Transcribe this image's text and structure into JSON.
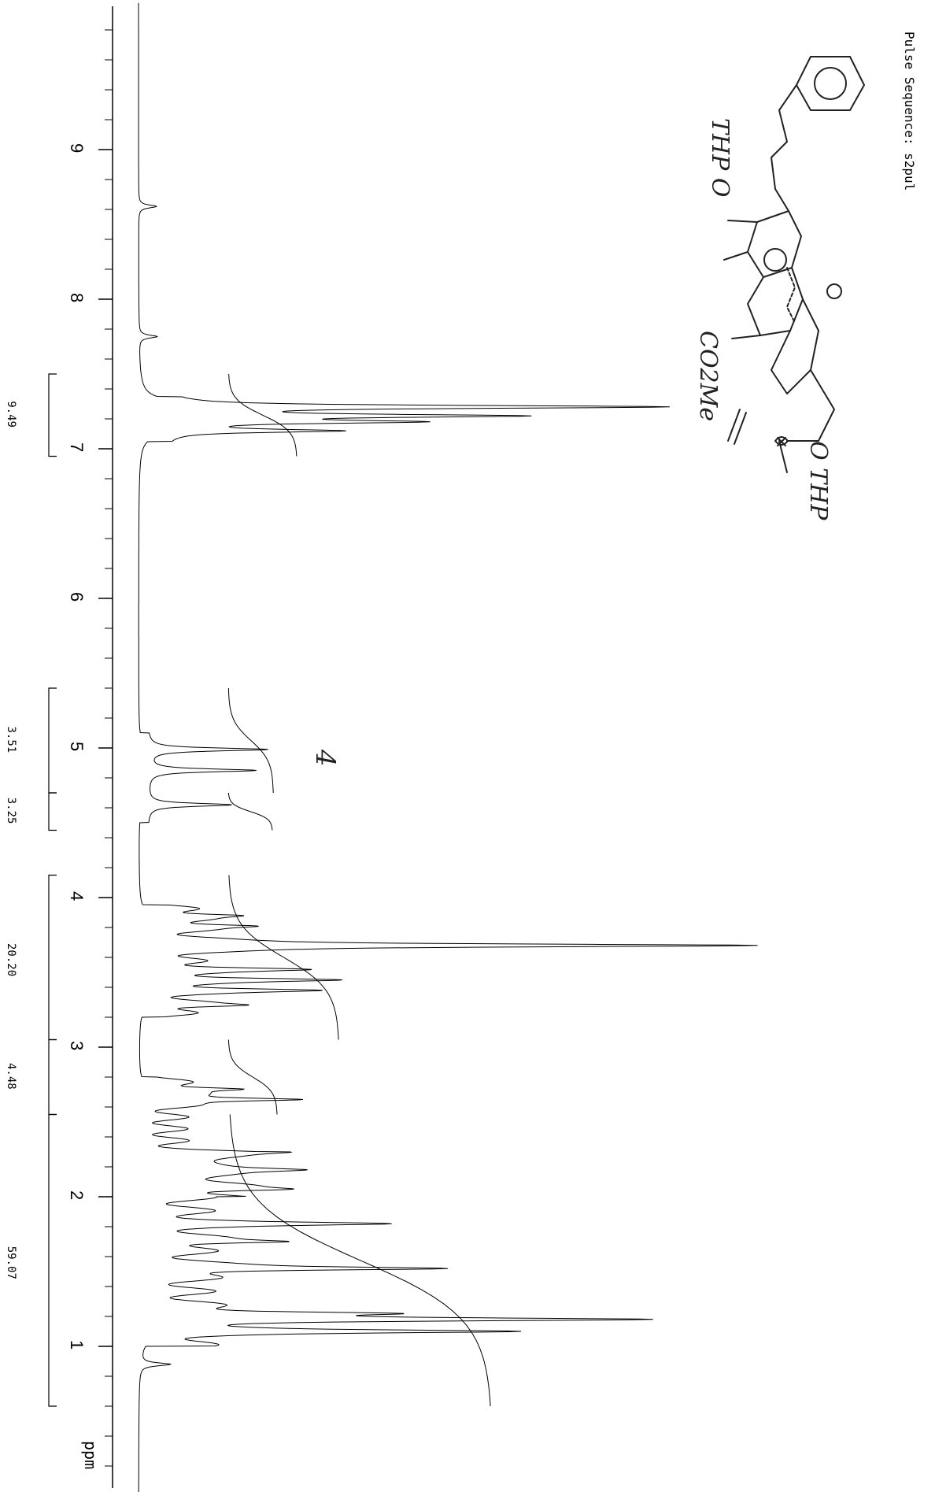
{
  "chart_data": {
    "type": "line",
    "title": "Pulse Sequence: s2pul",
    "xlabel": "ppm",
    "x_axis": {
      "from": 10.0,
      "to": -0.5,
      "reversed": true,
      "major_ticks": [
        9,
        8,
        7,
        6,
        5,
        4,
        3,
        2,
        1
      ],
      "minor_step": 0.2
    },
    "series": [
      {
        "peaks": [
          {
            "ppm": 7.28,
            "height": 0.82
          },
          {
            "ppm": 7.22,
            "height": 0.55
          },
          {
            "ppm": 7.18,
            "height": 0.38
          },
          {
            "ppm": 7.12,
            "height": 0.28
          },
          {
            "ppm": 4.99,
            "height": 0.2
          },
          {
            "ppm": 4.85,
            "height": 0.18
          },
          {
            "ppm": 4.62,
            "height": 0.14
          },
          {
            "ppm": 3.88,
            "height": 0.12
          },
          {
            "ppm": 3.81,
            "height": 0.14
          },
          {
            "ppm": 3.68,
            "height": 1.0
          },
          {
            "ppm": 3.52,
            "height": 0.2
          },
          {
            "ppm": 3.45,
            "height": 0.25
          },
          {
            "ppm": 3.38,
            "height": 0.22
          },
          {
            "ppm": 3.28,
            "height": 0.12
          },
          {
            "ppm": 2.72,
            "height": 0.14
          },
          {
            "ppm": 2.65,
            "height": 0.25
          },
          {
            "ppm": 2.3,
            "height": 0.12
          },
          {
            "ppm": 2.18,
            "height": 0.14
          },
          {
            "ppm": 2.05,
            "height": 0.14
          },
          {
            "ppm": 1.82,
            "height": 0.3
          },
          {
            "ppm": 1.7,
            "height": 0.18
          },
          {
            "ppm": 1.52,
            "height": 0.45
          },
          {
            "ppm": 1.22,
            "height": 0.32
          },
          {
            "ppm": 1.18,
            "height": 0.71
          },
          {
            "ppm": 1.1,
            "height": 0.5
          },
          {
            "ppm": 0.88,
            "height": 0.05
          },
          {
            "ppm": 8.62,
            "height": 0.03
          },
          {
            "ppm": 7.75,
            "height": 0.03
          }
        ]
      }
    ],
    "integrations": [
      {
        "label": "9.49",
        "from": 7.5,
        "to": 6.95
      },
      {
        "label": "3.51",
        "from": 5.4,
        "to": 4.7
      },
      {
        "label": "3.25",
        "from": 4.7,
        "to": 4.45
      },
      {
        "label": "20.20",
        "from": 4.15,
        "to": 3.05
      },
      {
        "label": "4.48",
        "from": 3.05,
        "to": 2.55
      },
      {
        "label": "59.07",
        "from": 2.55,
        "to": 0.6
      }
    ],
    "structure_annotations": [
      "THP O",
      "O THP",
      "CO2Me",
      "4"
    ],
    "grid": false
  }
}
